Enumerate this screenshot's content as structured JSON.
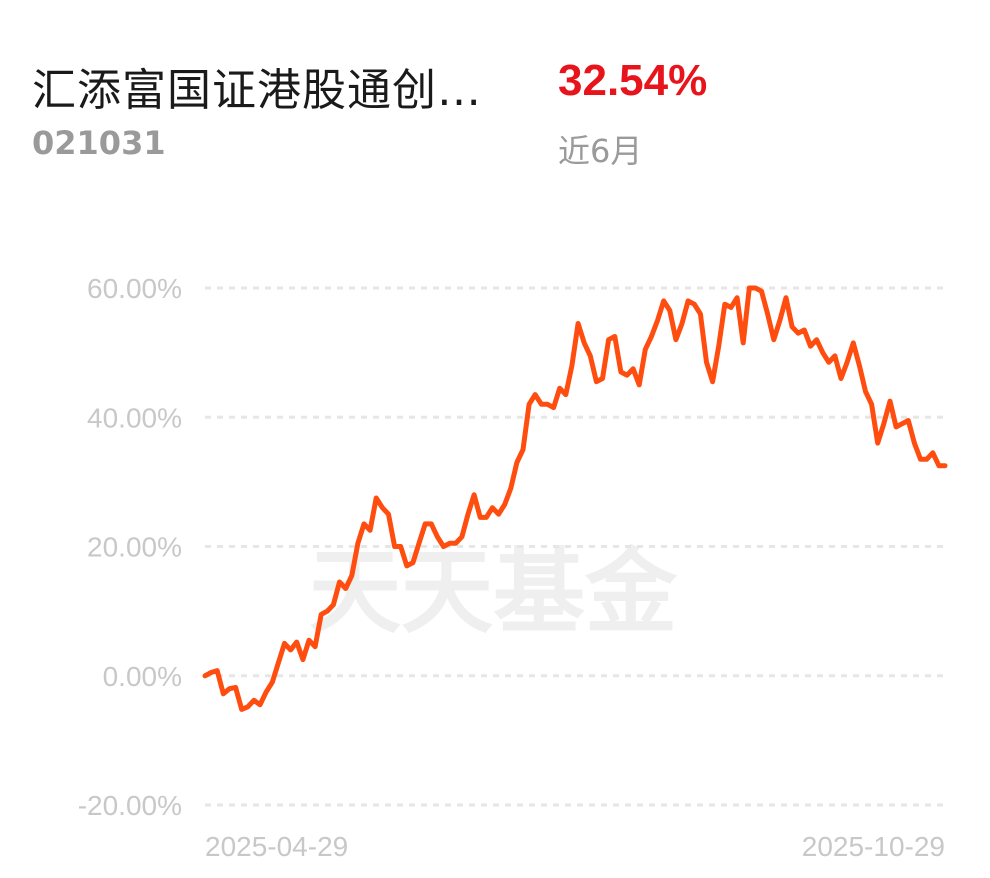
{
  "header": {
    "fund_name": "汇添富国证港股通创…",
    "fund_code": "021031",
    "return_value": "32.54%",
    "return_period": "近6月"
  },
  "watermark": "天天基金",
  "colors": {
    "line": "#ff4d0f",
    "grid": "#e6e6e6",
    "tick": "#c8c8c8",
    "return": "#e8141b"
  },
  "chart_data": {
    "type": "line",
    "x_range": [
      "2025-04-29",
      "2025-10-29"
    ],
    "x_tick_labels": [
      "2025-04-29",
      "2025-10-29"
    ],
    "y_tick_labels": [
      "60.00%",
      "40.00%",
      "20.00%",
      "0.00%",
      "-20.00%"
    ],
    "y_ticks": [
      60,
      40,
      20,
      0,
      -20
    ],
    "ylim": [
      -20,
      60
    ],
    "grid": "dashed horizontal",
    "series": [
      {
        "values": [
          0,
          0.5,
          0.8,
          -2.8,
          -2,
          -1.8,
          -5.2,
          -4.8,
          -3.8,
          -4.5,
          -2.5,
          -1,
          2,
          5,
          4,
          5.2,
          2.5,
          5.5,
          4.5,
          9.5,
          10,
          11,
          14.5,
          13.5,
          15.5,
          20.5,
          23.5,
          22.5,
          27.5,
          26,
          25,
          20,
          20,
          17,
          17.5,
          20.5,
          23.5,
          23.5,
          21.5,
          20,
          20.5,
          20.5,
          21.5,
          25,
          28,
          24.5,
          24.5,
          26,
          25,
          26.5,
          29,
          33,
          35,
          42,
          43.5,
          42,
          42,
          41.5,
          44.5,
          43.5,
          48,
          54.5,
          51.5,
          49.5,
          45.5,
          46,
          52,
          52.5,
          47,
          46.5,
          47.5,
          45,
          50.5,
          52.5,
          55,
          58,
          56.5,
          52,
          54.5,
          58,
          57.5,
          56,
          48.5,
          45.5,
          51,
          57.5,
          57,
          58.5,
          51.5,
          60,
          60,
          59.5,
          56,
          52,
          55,
          58.5,
          54,
          53,
          53.5,
          51,
          52,
          50,
          48.5,
          49.5,
          46,
          48.5,
          51.5,
          48,
          44,
          42,
          36,
          39,
          42.5,
          38.5,
          39,
          39.5,
          36,
          33.5,
          33.5,
          34.5,
          32.5,
          32.5
        ]
      }
    ]
  }
}
